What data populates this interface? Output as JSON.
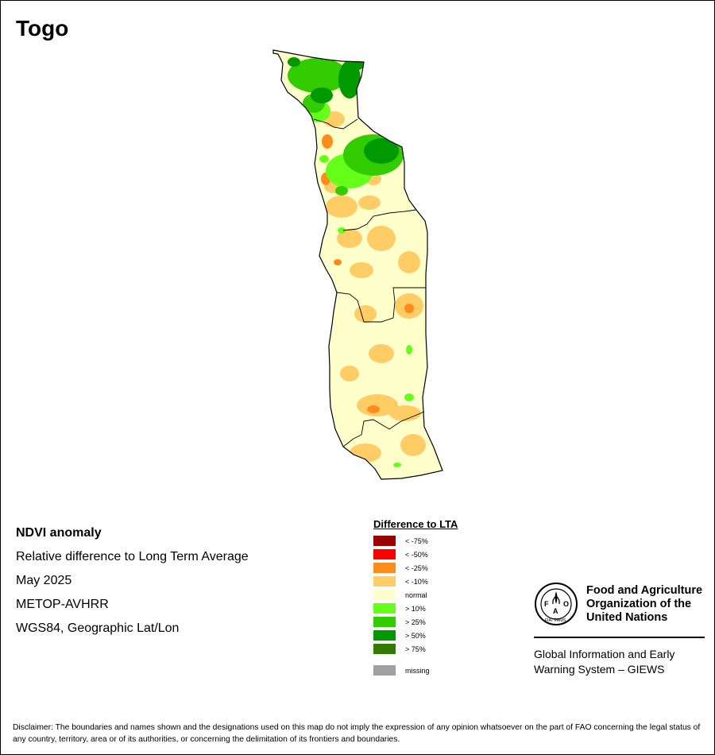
{
  "title": "Togo",
  "info_lines": [
    "NDVI anomaly",
    "Relative difference to Long Term Average",
    "May 2025",
    "METOP-AVHRR",
    "WGS84, Geographic Lat/Lon"
  ],
  "legend": {
    "title": "Difference to LTA",
    "items": [
      {
        "label": "< -75%",
        "color": "#990000"
      },
      {
        "label": "< -50%",
        "color": "#ff0000"
      },
      {
        "label": "< -25%",
        "color": "#ff8c1a"
      },
      {
        "label": "< -10%",
        "color": "#ffcc66"
      },
      {
        "label": "normal",
        "color": "#ffffcc"
      },
      {
        "label": "> 10%",
        "color": "#66ff1a"
      },
      {
        "label": "> 25%",
        "color": "#33cc00"
      },
      {
        "label": "> 50%",
        "color": "#009900"
      },
      {
        "label": "> 75%",
        "color": "#337a00"
      }
    ],
    "missing": {
      "label": "missing",
      "color": "#a0a0a0"
    }
  },
  "fao": {
    "name_lines": [
      "Food and Agriculture",
      "Organization of the",
      "United Nations"
    ],
    "logo_text": "FAO",
    "motto": "FIAT PANIS",
    "giews_lines": [
      "Global Information and Early",
      "Warning System – GIEWS"
    ]
  },
  "disclaimer": "Disclaimer: The boundaries and names shown and the designations used on this map do not imply the expression of any opinion whatsoever on the part of FAO concerning the legal status of any country, territory, area or of its authorities, or concerning the delimitation of its frontiers and boundaries.",
  "map_colors": {
    "normal": "#ffffcc",
    "below10": "#ffcc66",
    "below25": "#ff8c1a",
    "above10": "#66ff1a",
    "above25": "#33cc00",
    "above50": "#009900",
    "border": "#000000"
  }
}
